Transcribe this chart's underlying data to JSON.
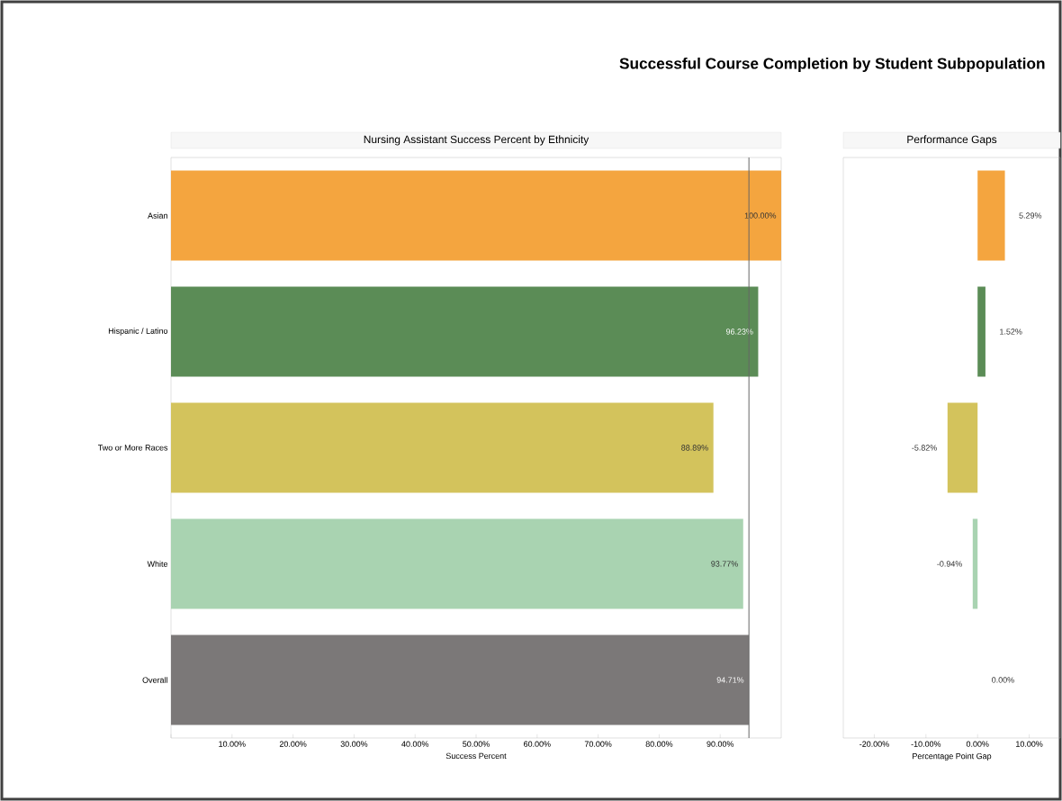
{
  "chart_data": [
    {
      "type": "bar",
      "orientation": "horizontal",
      "title": "Nursing Assistant Success Percent by Ethnicity",
      "xlabel": "Success Percent",
      "annotations": [
        "Successful Course Completion by Student Subpopulation"
      ],
      "categories": [
        "Asian",
        "Hispanic / Latino",
        "Two or More Races",
        "White",
        "Overall"
      ],
      "values": [
        100,
        96.23,
        88.89,
        93.77,
        94.71
      ],
      "value_labels": [
        "100.00%",
        "96.23%",
        "88.89%",
        "93.77%",
        "94.71%"
      ],
      "colors": [
        "#f4a53f",
        "#5b8c56",
        "#d3c35c",
        "#a9d3b1",
        "#7b7878"
      ],
      "xlim": [
        0,
        100
      ],
      "xticks": [
        {
          "value": 0,
          "label": null
        },
        {
          "value": 10,
          "label": "10.00%"
        },
        {
          "value": 20,
          "label": "20.00%"
        },
        {
          "value": 30,
          "label": "30.00%"
        },
        {
          "value": 40,
          "label": "40.00%"
        },
        {
          "value": 50,
          "label": "50.00%"
        },
        {
          "value": 60,
          "label": "60.00%"
        },
        {
          "value": 70,
          "label": "70.00%"
        },
        {
          "value": 80,
          "label": "80.00%"
        },
        {
          "value": 90,
          "label": "90.00%"
        }
      ],
      "ref_lines": [
        {
          "axis": "x",
          "value": 94.71,
          "color": "#666666"
        }
      ],
      "grid": false
    },
    {
      "type": "bar",
      "orientation": "horizontal",
      "title": "Performance Gaps",
      "xlabel": "Percentage Point Gap",
      "categories": [
        null,
        null,
        null,
        null,
        null
      ],
      "values": [
        5.29,
        1.52,
        -5.82,
        -0.94,
        0.0
      ],
      "value_labels": [
        "5.29%",
        "1.52%",
        "-5.82%",
        "-0.94%",
        "0.00%"
      ],
      "colors": [
        "#f4a53f",
        "#5b8c56",
        "#d3c35c",
        "#a9d3b1",
        "#7b7878"
      ],
      "xlim": [
        -26,
        16
      ],
      "xticks": [
        {
          "value": -20,
          "label": "-20.00%"
        },
        {
          "value": -10,
          "label": "-10.00%"
        },
        {
          "value": 0,
          "label": "0.00%"
        },
        {
          "value": 10,
          "label": "10.00%"
        }
      ],
      "grid": false
    }
  ]
}
